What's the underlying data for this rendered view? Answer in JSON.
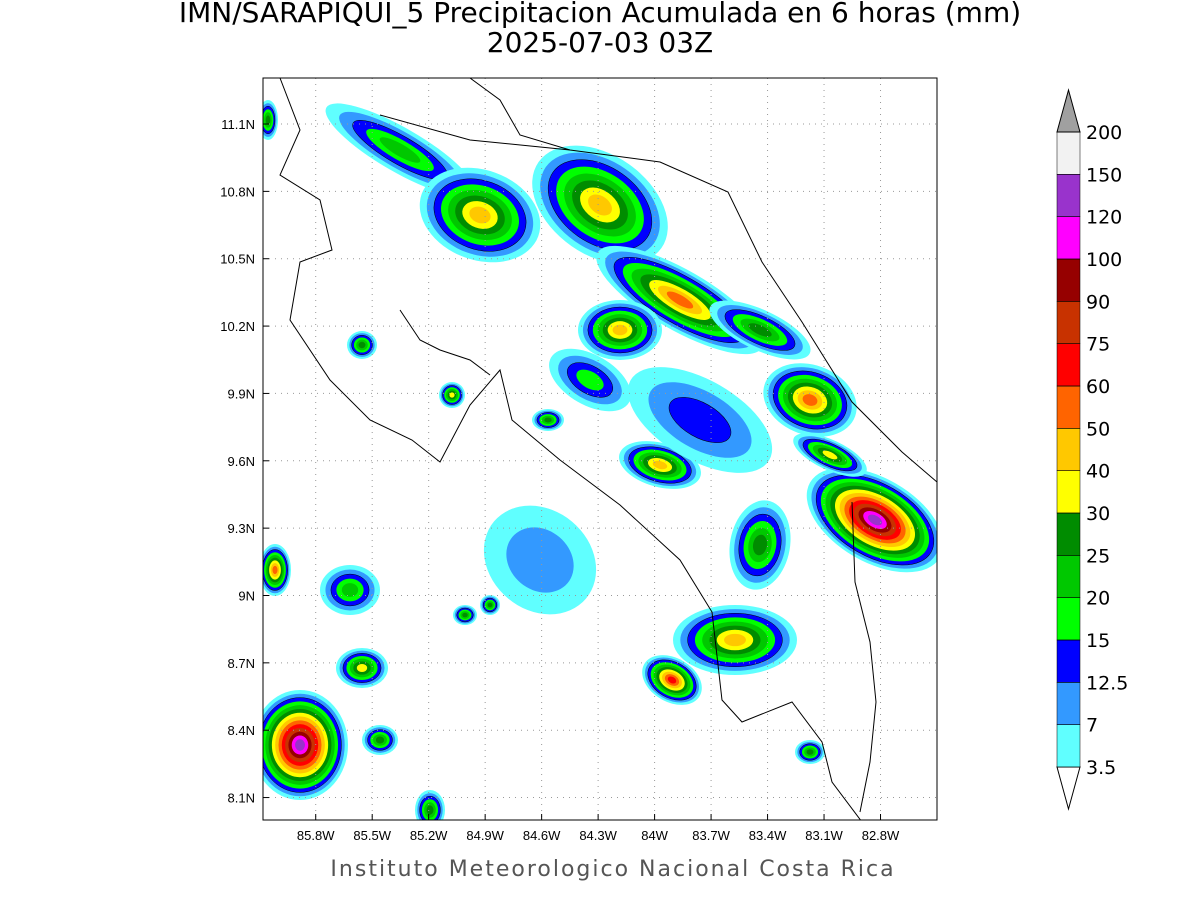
{
  "map": {
    "title": "IMN/SARAPIQUI_5 Precipitacion Acumulada en 6 horas (mm)",
    "subtitle": "2025-07-03 03Z",
    "credit": "Instituto Meteorologico Nacional Costa Rica",
    "xlim": [
      -86.08,
      -82.5
    ],
    "ylim": [
      8.0,
      11.305
    ],
    "xticks": [
      {
        "value": -85.8,
        "label": "85.8W"
      },
      {
        "value": -85.5,
        "label": "85.5W"
      },
      {
        "value": -85.2,
        "label": "85.2W"
      },
      {
        "value": -84.9,
        "label": "84.9W"
      },
      {
        "value": -84.6,
        "label": "84.6W"
      },
      {
        "value": -84.3,
        "label": "84.3W"
      },
      {
        "value": -84.0,
        "label": "84W"
      },
      {
        "value": -83.7,
        "label": "83.7W"
      },
      {
        "value": -83.4,
        "label": "83.4W"
      },
      {
        "value": -83.1,
        "label": "83.1W"
      },
      {
        "value": -82.8,
        "label": "82.8W"
      }
    ],
    "yticks": [
      {
        "value": 8.1,
        "label": "8.1N"
      },
      {
        "value": 8.4,
        "label": "8.4N"
      },
      {
        "value": 8.7,
        "label": "8.7N"
      },
      {
        "value": 9.0,
        "label": "9N"
      },
      {
        "value": 9.3,
        "label": "9.3N"
      },
      {
        "value": 9.6,
        "label": "9.6N"
      },
      {
        "value": 9.9,
        "label": "9.9N"
      },
      {
        "value": 10.2,
        "label": "10.2N"
      },
      {
        "value": 10.5,
        "label": "10.5N"
      },
      {
        "value": 10.8,
        "label": "10.8N"
      },
      {
        "value": 11.1,
        "label": "11.1N"
      }
    ],
    "grid": true,
    "levels": [
      3.5,
      7,
      12.5,
      15,
      20,
      25,
      30,
      40,
      50,
      60,
      75,
      90,
      100,
      120,
      150,
      200
    ],
    "colors": [
      "#ffffff",
      "#60ffff",
      "#3399ff",
      "#0000ff",
      "#00ff00",
      "#00c800",
      "#008c00",
      "#ffff00",
      "#ffc800",
      "#ff6400",
      "#ff0000",
      "#c83200",
      "#960000",
      "#ff00ff",
      "#9933cc",
      "#f2f2f2",
      "#a0a0a0"
    ]
  }
}
